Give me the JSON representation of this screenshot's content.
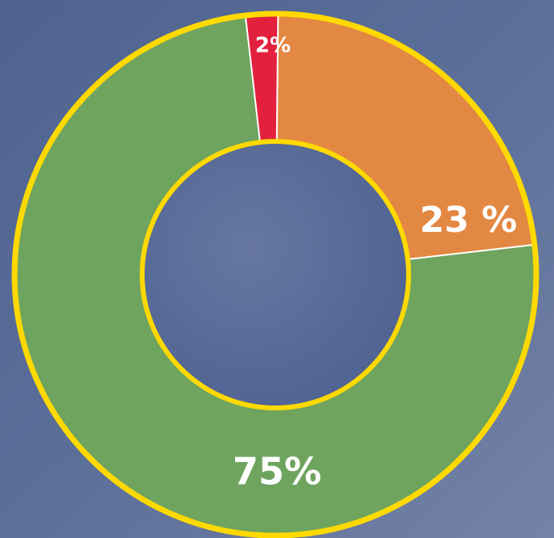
{
  "chart_data": {
    "type": "donut",
    "categories": [
      null,
      null,
      null
    ],
    "values": [
      2,
      23,
      75
    ],
    "value_labels": [
      "2%",
      "23 %",
      "75%"
    ],
    "colors": [
      "#e3213f",
      "#e38843",
      "#6fa45f"
    ]
  }
}
